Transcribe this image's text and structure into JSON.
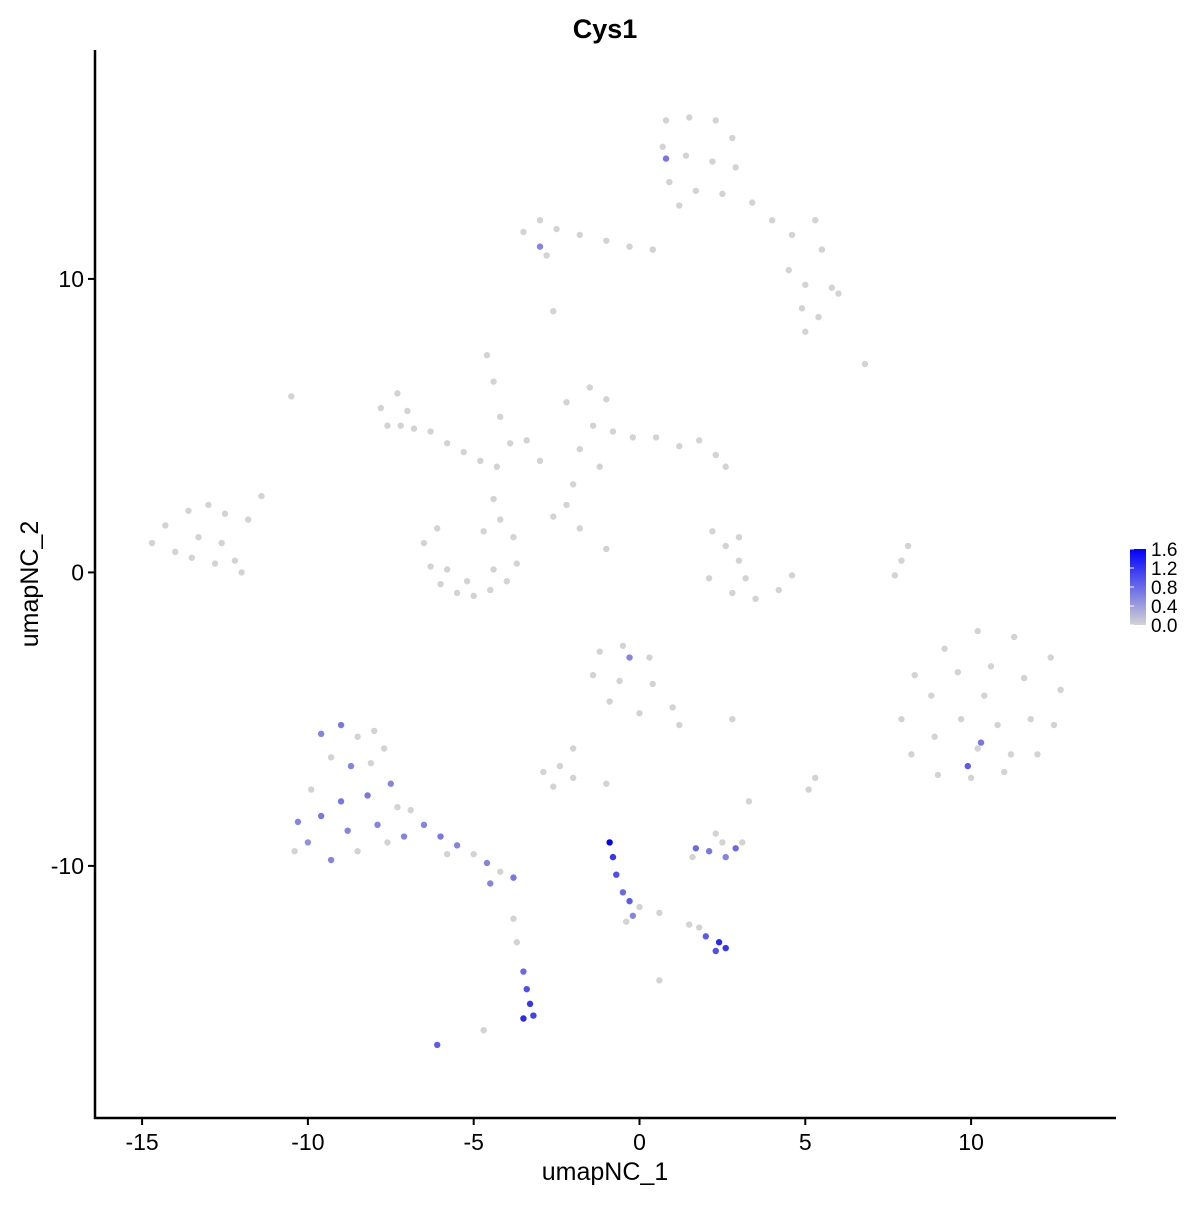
{
  "chart_data": {
    "type": "scatter",
    "title": "Cys1",
    "x_label": "umapNC_1",
    "y_label": "umapNC_2",
    "xlim": [
      -16.42,
      14.37
    ],
    "ylim": [
      -18.59,
      17.8
    ],
    "xticks": [
      -15,
      -10,
      -5,
      0,
      5,
      10
    ],
    "yticks": [
      -10,
      0,
      10
    ],
    "colors": [
      "#d3d3d3",
      "#0000ff"
    ],
    "clim": [
      0,
      1.6
    ],
    "cticks": [
      {
        "value": 0,
        "label": "0.0"
      },
      0.4,
      0.8,
      1.2,
      1.6
    ],
    "x": [
      0.8,
      1.5,
      2.3,
      2.8,
      0.7,
      1.4,
      2.2,
      2.9,
      0.9,
      1.7,
      2.5,
      1.2,
      0.8,
      3.4,
      4.0,
      4.6,
      5.3,
      5.5,
      4.5,
      5.0,
      5.8,
      6.0,
      4.9,
      5.4,
      5.0,
      -3.5,
      -3.0,
      -2.5,
      -1.8,
      -1.0,
      -0.3,
      0.4,
      -3.0,
      -2.8,
      -2.6,
      -7.8,
      -7.3,
      -7.0,
      -7.6,
      -6.8,
      -6.3,
      -5.8,
      -5.3,
      -4.8,
      -4.3,
      -7.2,
      -4.6,
      -4.4,
      -4.2,
      -3.9,
      -4.4,
      -4.2,
      -10.5,
      -6.5,
      -6.3,
      -6.0,
      -5.5,
      -5.0,
      -4.5,
      -4.0,
      -3.7,
      -3.8,
      -5.8,
      -5.2,
      -4.4,
      -6.1,
      -4.7,
      -2.2,
      -1.5,
      -1.0,
      -1.4,
      -0.8,
      -0.2,
      0.5,
      1.2,
      1.8,
      2.3,
      2.6,
      -1.8,
      -1.2,
      -2.0,
      -2.2,
      -2.6,
      -3.4,
      -3.0,
      -1.8,
      -1.0,
      -14.7,
      -14.3,
      -13.6,
      -13.0,
      -12.5,
      -14.0,
      -13.3,
      -12.6,
      -12.2,
      -12.8,
      -11.8,
      -11.4,
      -12.0,
      -13.5,
      2.2,
      2.6,
      3.0,
      2.1,
      2.8,
      3.5,
      4.2,
      4.6,
      3.2,
      3.0,
      8.1,
      7.9,
      7.7,
      6.8,
      8.3,
      9.2,
      10.2,
      11.3,
      12.4,
      12.7,
      12.5,
      12.0,
      11.0,
      10.0,
      9.0,
      8.2,
      7.9,
      8.8,
      9.6,
      10.6,
      11.6,
      11.8,
      10.8,
      9.7,
      8.9,
      10.2,
      11.2,
      10.4,
      10.3,
      9.9,
      -1.2,
      -0.5,
      0.3,
      -1.4,
      -0.6,
      0.4,
      1.0,
      -0.9,
      0.0,
      1.2,
      -0.3,
      2.8,
      -2.9,
      -2.4,
      -2.0,
      -2.6,
      -2.0,
      -1.0,
      5.1,
      5.3,
      3.3,
      -10.3,
      -10.0,
      -9.6,
      -9.3,
      -9.0,
      -8.8,
      -8.5,
      -8.2,
      -7.9,
      -7.6,
      -7.3,
      -7.1,
      -9.6,
      -9.0,
      -8.5,
      -8.0,
      -9.3,
      -8.7,
      -8.1,
      -7.7,
      -9.9,
      -10.4,
      -7.5,
      -6.9,
      -6.5,
      -6.0,
      -5.5,
      -5.0,
      -4.6,
      -4.2,
      -3.8,
      -4.5,
      -5.8,
      -3.8,
      -3.7,
      -0.9,
      -0.8,
      -0.7,
      -0.5,
      -0.3,
      -0.2,
      -0.4,
      0.0,
      0.6,
      1.5,
      0.6,
      1.7,
      2.1,
      2.5,
      2.9,
      3.1,
      2.3,
      2.6,
      1.6,
      2.0,
      2.4,
      2.6,
      2.3,
      1.8,
      -3.5,
      -3.4,
      -3.3,
      -3.2,
      -3.5,
      -6.1,
      -4.7
    ],
    "series": [
      {
        "values": [
          15.4,
          15.5,
          15.4,
          14.8,
          14.5,
          14.2,
          14.0,
          13.8,
          13.3,
          13.0,
          12.9,
          12.5,
          14.1,
          12.6,
          12.0,
          11.5,
          12.0,
          11.0,
          10.3,
          9.8,
          9.7,
          9.5,
          9.0,
          8.7,
          8.2,
          11.6,
          12.0,
          11.7,
          11.5,
          11.3,
          11.1,
          11.0,
          11.1,
          10.8,
          8.9,
          5.6,
          6.1,
          5.5,
          5.0,
          4.9,
          4.8,
          4.4,
          4.1,
          3.8,
          3.6,
          5.0,
          7.4,
          6.5,
          5.3,
          4.4,
          2.5,
          1.8,
          6.0,
          1.0,
          0.2,
          -0.4,
          -0.7,
          -0.8,
          -0.6,
          -0.3,
          0.3,
          1.2,
          0.1,
          -0.3,
          0.1,
          1.5,
          1.4,
          5.8,
          6.3,
          5.9,
          5.0,
          4.8,
          4.6,
          4.6,
          4.3,
          4.5,
          4.0,
          3.6,
          4.2,
          3.6,
          3.0,
          2.3,
          1.9,
          4.5,
          3.8,
          1.5,
          0.8,
          1.0,
          1.6,
          2.1,
          2.3,
          2.0,
          0.7,
          1.2,
          1.0,
          0.4,
          0.3,
          1.8,
          2.6,
          0.0,
          0.5,
          1.4,
          0.9,
          0.4,
          -0.2,
          -0.7,
          -0.9,
          -0.6,
          -0.1,
          -0.2,
          1.2,
          0.9,
          0.4,
          -0.1,
          7.1,
          -3.5,
          -2.6,
          -2.0,
          -2.2,
          -2.9,
          -4.0,
          -5.2,
          -6.2,
          -6.8,
          -7.0,
          -6.9,
          -6.2,
          -5.0,
          -4.2,
          -3.4,
          -3.2,
          -3.6,
          -5.0,
          -5.2,
          -5.0,
          -5.6,
          -6.0,
          -6.2,
          -4.2,
          -5.8,
          -6.6,
          -2.7,
          -2.5,
          -2.9,
          -3.5,
          -3.7,
          -3.8,
          -4.6,
          -4.4,
          -4.8,
          -5.2,
          -2.9,
          -5.0,
          -6.8,
          -6.6,
          -7.0,
          -7.3,
          -6.0,
          -7.2,
          -7.4,
          -7.0,
          -7.8,
          -8.5,
          -9.2,
          -8.3,
          -9.8,
          -7.8,
          -8.8,
          -9.5,
          -7.6,
          -8.6,
          -9.2,
          -8.0,
          -9.0,
          -5.5,
          -5.2,
          -5.6,
          -5.4,
          -6.3,
          -6.6,
          -6.5,
          -6.0,
          -7.4,
          -9.5,
          -7.2,
          -8.1,
          -8.6,
          -9.0,
          -9.3,
          -9.6,
          -9.9,
          -10.2,
          -10.4,
          -10.6,
          -9.6,
          -11.8,
          -12.6,
          -9.2,
          -9.7,
          -10.3,
          -10.9,
          -11.2,
          -11.7,
          -11.9,
          -11.4,
          -11.6,
          -12.0,
          -13.9,
          -9.4,
          -9.5,
          -9.2,
          -9.4,
          -9.2,
          -8.9,
          -9.7,
          -9.7,
          -12.4,
          -12.6,
          -12.8,
          -12.9,
          -12.1,
          -13.6,
          -14.2,
          -14.7,
          -15.1,
          -15.2,
          -16.1,
          -15.6
        ],
        "color_values": [
          0,
          0,
          0,
          0,
          0,
          0,
          0,
          0,
          0,
          0,
          0,
          0,
          0.7,
          0,
          0,
          0,
          0,
          0,
          0,
          0,
          0,
          0,
          0,
          0,
          0,
          0,
          0,
          0,
          0,
          0,
          0,
          0,
          0.6,
          0,
          0,
          0,
          0,
          0,
          0,
          0,
          0,
          0,
          0,
          0,
          0,
          0,
          0,
          0,
          0,
          0,
          0,
          0,
          0,
          0,
          0,
          0,
          0,
          0,
          0,
          0,
          0,
          0,
          0,
          0,
          0,
          0,
          0,
          0,
          0,
          0,
          0,
          0,
          0,
          0,
          0,
          0,
          0,
          0,
          0,
          0,
          0,
          0,
          0,
          0,
          0,
          0,
          0,
          0,
          0,
          0,
          0,
          0,
          0,
          0,
          0,
          0,
          0,
          0,
          0,
          0,
          0,
          0,
          0,
          0,
          0,
          0,
          0,
          0,
          0,
          0,
          0,
          0,
          0,
          0,
          0,
          0,
          0,
          0,
          0,
          0,
          0,
          0,
          0,
          0,
          0,
          0,
          0,
          0,
          0,
          0,
          0,
          0,
          0,
          0,
          0,
          0,
          0,
          0,
          0,
          0.7,
          0.9,
          0,
          0,
          0,
          0,
          0,
          0,
          0,
          0,
          0,
          0,
          0.6,
          0,
          0,
          0,
          0,
          0,
          0,
          0,
          0,
          0,
          0,
          0.6,
          0.5,
          0.7,
          0.6,
          0.7,
          0.6,
          0,
          0.7,
          0.6,
          0,
          0,
          0.6,
          0.6,
          0.7,
          0,
          0,
          0,
          0.6,
          0,
          0,
          0,
          0,
          0.6,
          0,
          0.6,
          0.7,
          0.6,
          0,
          0.6,
          0,
          0.7,
          0.6,
          0,
          0,
          0,
          1.6,
          1.2,
          1.0,
          0.8,
          0.9,
          0.6,
          0,
          0,
          0,
          0,
          0,
          0.8,
          0.7,
          0,
          0.8,
          0,
          0,
          0.6,
          0,
          0.9,
          1.3,
          1.2,
          1.0,
          0,
          0.8,
          1.0,
          1.2,
          1.1,
          1.3,
          0.9,
          0
        ]
      }
    ]
  }
}
